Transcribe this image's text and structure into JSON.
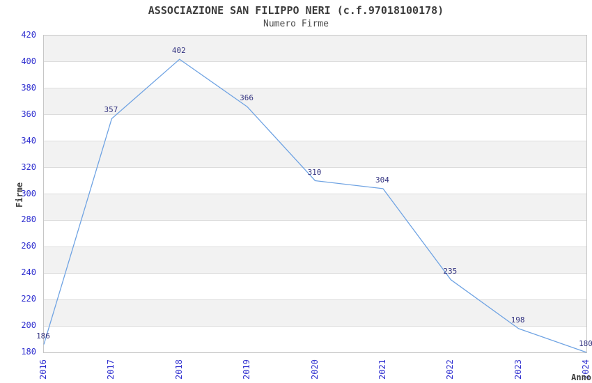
{
  "title": "ASSOCIAZIONE SAN FILIPPO NERI (c.f.97018100178)",
  "subtitle": "Numero Firme",
  "chart_data": {
    "type": "line",
    "x": [
      "2016",
      "2017",
      "2018",
      "2019",
      "2020",
      "2021",
      "2022",
      "2023",
      "2024"
    ],
    "series": [
      {
        "name": "Numero Firme",
        "values": [
          186,
          357,
          402,
          366,
          310,
          304,
          235,
          198,
          180
        ]
      }
    ],
    "title": "ASSOCIAZIONE SAN FILIPPO NERI (c.f.97018100178)",
    "subtitle": "Numero Firme",
    "xlabel": "Anno",
    "ylabel": "Firme",
    "ylim": [
      180,
      420
    ],
    "ytick_step": 20,
    "yticks": [
      420,
      400,
      380,
      360,
      340,
      320,
      300,
      280,
      260,
      240,
      220,
      200,
      180
    ],
    "grid": "horizontal-bands-alternating",
    "legend": "none",
    "data_labels_visible": true,
    "colors": {
      "line": "#6fa3e3",
      "tick_label": "#2e2ecf",
      "data_label": "#333380",
      "band_gray": "#f2f2f2",
      "band_white": "#ffffff",
      "gridline": "#dcdcdc",
      "plot_border": "#c6c6c6",
      "title_text": "#3c3c3c"
    }
  }
}
